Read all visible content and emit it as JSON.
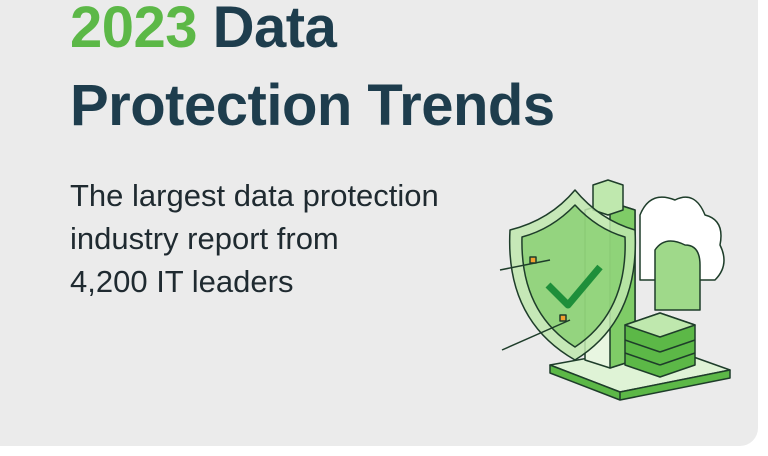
{
  "header": {
    "title_year": "2023",
    "title_line1": "Data",
    "title_line2": "Protection Trends"
  },
  "subtitle": {
    "lines": [
      "The largest data protection",
      "industry report from",
      "4,200 IT leaders"
    ]
  }
}
